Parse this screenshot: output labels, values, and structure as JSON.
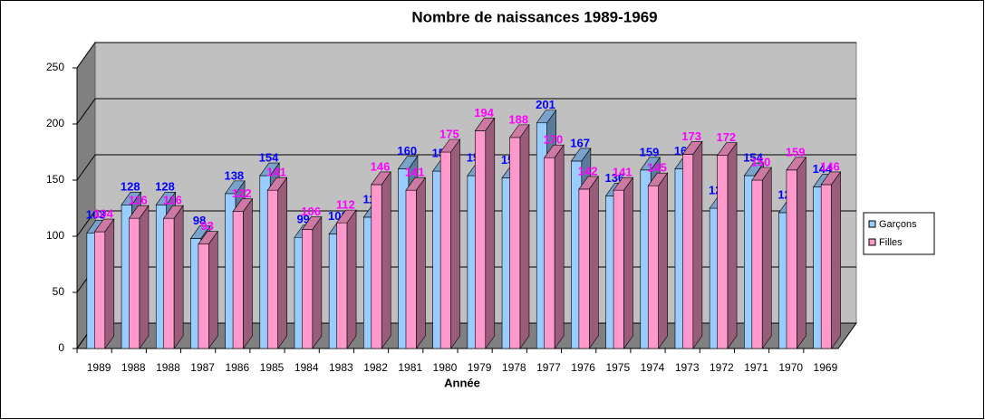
{
  "chart_data": {
    "type": "bar3d",
    "title": "Nombre de naissances 1989-1969",
    "x_label": "Année",
    "categories": [
      "1989",
      "1988",
      "1988",
      "1987",
      "1986",
      "1985",
      "1984",
      "1983",
      "1982",
      "1981",
      "1980",
      "1979",
      "1978",
      "1977",
      "1976",
      "1975",
      "1974",
      "1973",
      "1972",
      "1971",
      "1970",
      "1969"
    ],
    "series": [
      {
        "name": "Garçons",
        "color": "#99ccff",
        "label_color": "#0000ff",
        "values": [
          103,
          128,
          128,
          98,
          138,
          154,
          99,
          102,
          117,
          160,
          158,
          154,
          152,
          201,
          167,
          136,
          159,
          160,
          125,
          154,
          121,
          144
        ]
      },
      {
        "name": "Filles",
        "color": "#ff99cc",
        "label_color": "#ff00ff",
        "values": [
          104,
          116,
          116,
          93,
          122,
          141,
          106,
          112,
          146,
          141,
          175,
          194,
          188,
          170,
          142,
          141,
          145,
          173,
          172,
          150,
          159,
          146
        ]
      }
    ],
    "ylim": [
      0,
      250
    ],
    "yticks": [
      0,
      50,
      100,
      150,
      200,
      250
    ],
    "grid": true,
    "legend": "right"
  }
}
